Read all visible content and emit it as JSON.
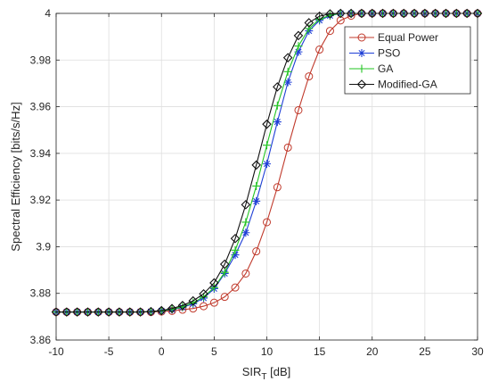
{
  "chart_data": {
    "type": "line",
    "xlabel_main": "SIR",
    "xlabel_sub": "T",
    "xlabel_unit": " [dB]",
    "ylabel": "Spectral Efficiency [bits/s/Hz]",
    "xlim": [
      -10,
      30
    ],
    "ylim": [
      3.86,
      4.0
    ],
    "xticks": [
      -10,
      -5,
      0,
      5,
      10,
      15,
      20,
      25,
      30
    ],
    "yticks": [
      3.86,
      3.88,
      3.9,
      3.92,
      3.94,
      3.96,
      3.98,
      4.0
    ],
    "ytick_labels": [
      "3.86",
      "3.88",
      "3.9",
      "3.92",
      "3.94",
      "3.96",
      "3.98",
      "4"
    ],
    "grid": true,
    "legend_position": "top-right",
    "x": [
      -10,
      -9,
      -8,
      -7,
      -6,
      -5,
      -4,
      -3,
      -2,
      -1,
      0,
      1,
      2,
      3,
      4,
      5,
      6,
      7,
      8,
      9,
      10,
      11,
      12,
      13,
      14,
      15,
      16,
      17,
      18,
      19,
      20,
      21,
      22,
      23,
      24,
      25,
      26,
      27,
      28,
      29,
      30
    ],
    "series": [
      {
        "name": "Equal Power",
        "color": "#c0392b",
        "marker": "circle",
        "values": [
          3.872,
          3.872,
          3.872,
          3.872,
          3.872,
          3.872,
          3.872,
          3.872,
          3.872,
          3.872,
          3.8722,
          3.8725,
          3.873,
          3.8735,
          3.8745,
          3.876,
          3.8785,
          3.8825,
          3.8885,
          3.898,
          3.9105,
          3.9255,
          3.9425,
          3.9585,
          3.973,
          3.9845,
          3.9925,
          3.997,
          3.999,
          4.0,
          4.0,
          4.0,
          4.0,
          4.0,
          4.0,
          4.0,
          4.0,
          4.0,
          4.0,
          4.0,
          4.0
        ]
      },
      {
        "name": "PSO",
        "color": "#1f3fd6",
        "marker": "asterisk",
        "values": [
          3.872,
          3.872,
          3.872,
          3.872,
          3.872,
          3.872,
          3.872,
          3.872,
          3.872,
          3.8722,
          3.8725,
          3.873,
          3.874,
          3.8755,
          3.878,
          3.882,
          3.8885,
          3.8965,
          3.906,
          3.9195,
          3.9355,
          3.9535,
          3.9705,
          3.9835,
          3.9925,
          3.997,
          3.999,
          4.0,
          4.0,
          4.0,
          4.0,
          4.0,
          4.0,
          4.0,
          4.0,
          4.0,
          4.0,
          4.0,
          4.0,
          4.0,
          4.0
        ]
      },
      {
        "name": "GA",
        "color": "#22c422",
        "marker": "plus",
        "values": [
          3.872,
          3.872,
          3.872,
          3.872,
          3.872,
          3.872,
          3.872,
          3.872,
          3.872,
          3.8722,
          3.8725,
          3.8732,
          3.8742,
          3.876,
          3.8785,
          3.8825,
          3.889,
          3.8985,
          3.9105,
          3.926,
          3.9435,
          3.9605,
          3.975,
          3.986,
          3.9935,
          3.9975,
          3.9992,
          4.0,
          4.0,
          4.0,
          4.0,
          4.0,
          4.0,
          4.0,
          4.0,
          4.0,
          4.0,
          4.0,
          4.0,
          4.0,
          4.0
        ]
      },
      {
        "name": "Modified-GA",
        "color": "#111111",
        "marker": "diamond",
        "values": [
          3.872,
          3.872,
          3.872,
          3.872,
          3.872,
          3.872,
          3.872,
          3.872,
          3.872,
          3.8722,
          3.8726,
          3.8735,
          3.8748,
          3.8768,
          3.8798,
          3.8845,
          3.8925,
          3.9035,
          3.918,
          3.935,
          3.9525,
          3.9685,
          3.981,
          3.9905,
          3.996,
          3.9988,
          3.9998,
          4.0,
          4.0,
          4.0,
          4.0,
          4.0,
          4.0,
          4.0,
          4.0,
          4.0,
          4.0,
          4.0,
          4.0,
          4.0,
          4.0
        ]
      }
    ]
  }
}
